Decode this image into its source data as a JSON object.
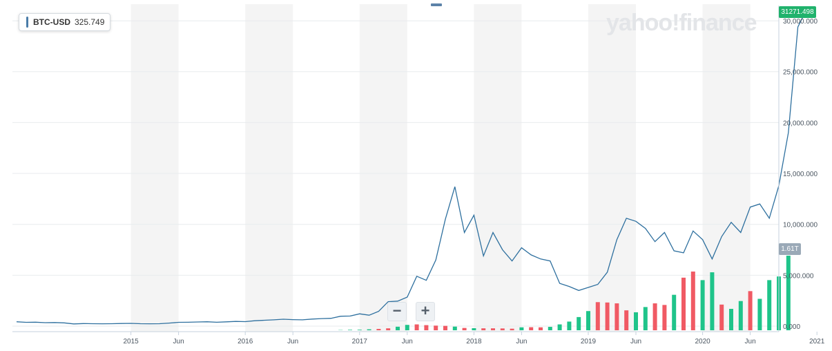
{
  "legend": {
    "symbol": "BTC-USD",
    "value": "325.749"
  },
  "watermark": "yahoo!finance",
  "last_price_label": "31271.498",
  "volume_label": "1.61T",
  "zoom": {
    "minus_label": "−",
    "plus_label": "+"
  },
  "chart_data": {
    "type": "line",
    "x_tick_labels": [
      "2015",
      "Jun",
      "2016",
      "Jun",
      "2017",
      "Jun",
      "2018",
      "Jun",
      "2019",
      "Jun",
      "2020",
      "Jun",
      "2021"
    ],
    "x_tick_months": [
      12,
      17,
      24,
      29,
      36,
      41,
      48,
      53,
      60,
      65,
      72,
      77,
      84
    ],
    "y_tick_labels": [
      "0.000",
      "5,000.000",
      "10,000.000",
      "15,000.000",
      "20,000.000",
      "25,000.000",
      "30,000.000"
    ],
    "y_ticks": [
      0,
      5000,
      10000,
      15000,
      20000,
      25000,
      30000
    ],
    "ylim": [
      0,
      31500
    ],
    "grid": true,
    "colors": {
      "line": "#2d6f9e",
      "volume_up": "#1fc48a",
      "volume_down": "#f05a64",
      "band": "#f4f4f4",
      "price_flag": "#20b26c",
      "volume_flag": "#9aa9b7"
    },
    "series": [
      {
        "type": "line",
        "start": "2014-07",
        "values": [
          430,
          370,
          390,
          340,
          350,
          320,
          220,
          250,
          240,
          230,
          240,
          260,
          270,
          240,
          230,
          240,
          300,
          370,
          380,
          410,
          430,
          380,
          420,
          460,
          440,
          530,
          580,
          620,
          680,
          640,
          620,
          690,
          740,
          770,
          970,
          990,
          1210,
          1070,
          1450,
          2400,
          2460,
          2850,
          4900,
          4500,
          6500,
          10500,
          13700,
          9200,
          10900,
          6900,
          9200,
          7500,
          6400,
          7700,
          7000,
          6600,
          6400,
          4200,
          3900,
          3500,
          3800,
          4100,
          5300,
          8500,
          10600,
          10300,
          9600,
          8300,
          9200,
          7400,
          7200,
          9350,
          8500,
          6600,
          8800,
          10200,
          9200,
          11700,
          12000,
          10600,
          13800,
          19000,
          29400,
          31271
        ]
      },
      {
        "type": "bar",
        "name": "volume",
        "start": "2017-05",
        "scale": "volume band (1.61T label at right axis)",
        "values": [
          20,
          40,
          45,
          80,
          110,
          160,
          290,
          440,
          480,
          420,
          380,
          360,
          300,
          190,
          170,
          160,
          160,
          150,
          130,
          240,
          250,
          240,
          280,
          480,
          710,
          1080,
          1570,
          2300,
          2270,
          2200,
          1630,
          1470,
          1900,
          2200,
          2070,
          2900,
          4300,
          4800,
          4100,
          4740,
          2100,
          1750,
          2390,
          3200,
          2570,
          4100,
          4400,
          6100
        ],
        "direction": [
          "up",
          "up",
          "up",
          "up",
          "down",
          "down",
          "up",
          "up",
          "down",
          "down",
          "down",
          "down",
          "up",
          "down",
          "up",
          "down",
          "down",
          "down",
          "down",
          "up",
          "down",
          "down",
          "up",
          "up",
          "up",
          "up",
          "up",
          "down",
          "down",
          "down",
          "down",
          "up",
          "up",
          "down",
          "down",
          "up",
          "down",
          "down",
          "up",
          "up",
          "down",
          "up",
          "up",
          "down",
          "up",
          "up",
          "up",
          "up"
        ]
      }
    ]
  }
}
